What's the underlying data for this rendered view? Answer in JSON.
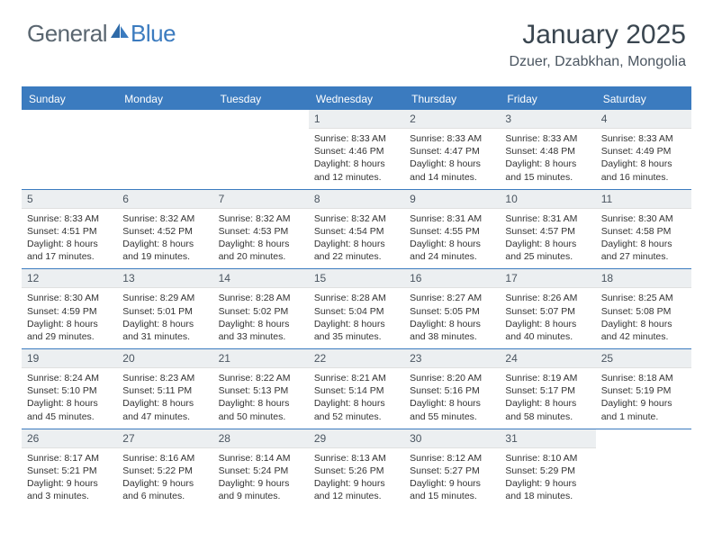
{
  "logo": {
    "general": "General",
    "blue": "Blue"
  },
  "title": "January 2025",
  "location": "Dzuer, Dzabkhan, Mongolia",
  "colors": {
    "accent": "#3b7bbf",
    "header_text": "#3a4650",
    "logo_gray": "#5a6670",
    "daynum_bg": "#eceff1",
    "background": "#ffffff"
  },
  "day_headers": [
    "Sunday",
    "Monday",
    "Tuesday",
    "Wednesday",
    "Thursday",
    "Friday",
    "Saturday"
  ],
  "weeks": [
    [
      null,
      null,
      null,
      {
        "n": "1",
        "sr": "8:33 AM",
        "ss": "4:46 PM",
        "dl": "8 hours and 12 minutes."
      },
      {
        "n": "2",
        "sr": "8:33 AM",
        "ss": "4:47 PM",
        "dl": "8 hours and 14 minutes."
      },
      {
        "n": "3",
        "sr": "8:33 AM",
        "ss": "4:48 PM",
        "dl": "8 hours and 15 minutes."
      },
      {
        "n": "4",
        "sr": "8:33 AM",
        "ss": "4:49 PM",
        "dl": "8 hours and 16 minutes."
      }
    ],
    [
      {
        "n": "5",
        "sr": "8:33 AM",
        "ss": "4:51 PM",
        "dl": "8 hours and 17 minutes."
      },
      {
        "n": "6",
        "sr": "8:32 AM",
        "ss": "4:52 PM",
        "dl": "8 hours and 19 minutes."
      },
      {
        "n": "7",
        "sr": "8:32 AM",
        "ss": "4:53 PM",
        "dl": "8 hours and 20 minutes."
      },
      {
        "n": "8",
        "sr": "8:32 AM",
        "ss": "4:54 PM",
        "dl": "8 hours and 22 minutes."
      },
      {
        "n": "9",
        "sr": "8:31 AM",
        "ss": "4:55 PM",
        "dl": "8 hours and 24 minutes."
      },
      {
        "n": "10",
        "sr": "8:31 AM",
        "ss": "4:57 PM",
        "dl": "8 hours and 25 minutes."
      },
      {
        "n": "11",
        "sr": "8:30 AM",
        "ss": "4:58 PM",
        "dl": "8 hours and 27 minutes."
      }
    ],
    [
      {
        "n": "12",
        "sr": "8:30 AM",
        "ss": "4:59 PM",
        "dl": "8 hours and 29 minutes."
      },
      {
        "n": "13",
        "sr": "8:29 AM",
        "ss": "5:01 PM",
        "dl": "8 hours and 31 minutes."
      },
      {
        "n": "14",
        "sr": "8:28 AM",
        "ss": "5:02 PM",
        "dl": "8 hours and 33 minutes."
      },
      {
        "n": "15",
        "sr": "8:28 AM",
        "ss": "5:04 PM",
        "dl": "8 hours and 35 minutes."
      },
      {
        "n": "16",
        "sr": "8:27 AM",
        "ss": "5:05 PM",
        "dl": "8 hours and 38 minutes."
      },
      {
        "n": "17",
        "sr": "8:26 AM",
        "ss": "5:07 PM",
        "dl": "8 hours and 40 minutes."
      },
      {
        "n": "18",
        "sr": "8:25 AM",
        "ss": "5:08 PM",
        "dl": "8 hours and 42 minutes."
      }
    ],
    [
      {
        "n": "19",
        "sr": "8:24 AM",
        "ss": "5:10 PM",
        "dl": "8 hours and 45 minutes."
      },
      {
        "n": "20",
        "sr": "8:23 AM",
        "ss": "5:11 PM",
        "dl": "8 hours and 47 minutes."
      },
      {
        "n": "21",
        "sr": "8:22 AM",
        "ss": "5:13 PM",
        "dl": "8 hours and 50 minutes."
      },
      {
        "n": "22",
        "sr": "8:21 AM",
        "ss": "5:14 PM",
        "dl": "8 hours and 52 minutes."
      },
      {
        "n": "23",
        "sr": "8:20 AM",
        "ss": "5:16 PM",
        "dl": "8 hours and 55 minutes."
      },
      {
        "n": "24",
        "sr": "8:19 AM",
        "ss": "5:17 PM",
        "dl": "8 hours and 58 minutes."
      },
      {
        "n": "25",
        "sr": "8:18 AM",
        "ss": "5:19 PM",
        "dl": "9 hours and 1 minute."
      }
    ],
    [
      {
        "n": "26",
        "sr": "8:17 AM",
        "ss": "5:21 PM",
        "dl": "9 hours and 3 minutes."
      },
      {
        "n": "27",
        "sr": "8:16 AM",
        "ss": "5:22 PM",
        "dl": "9 hours and 6 minutes."
      },
      {
        "n": "28",
        "sr": "8:14 AM",
        "ss": "5:24 PM",
        "dl": "9 hours and 9 minutes."
      },
      {
        "n": "29",
        "sr": "8:13 AM",
        "ss": "5:26 PM",
        "dl": "9 hours and 12 minutes."
      },
      {
        "n": "30",
        "sr": "8:12 AM",
        "ss": "5:27 PM",
        "dl": "9 hours and 15 minutes."
      },
      {
        "n": "31",
        "sr": "8:10 AM",
        "ss": "5:29 PM",
        "dl": "9 hours and 18 minutes."
      },
      null
    ]
  ],
  "labels": {
    "sunrise": "Sunrise:",
    "sunset": "Sunset:",
    "daylight": "Daylight:"
  }
}
